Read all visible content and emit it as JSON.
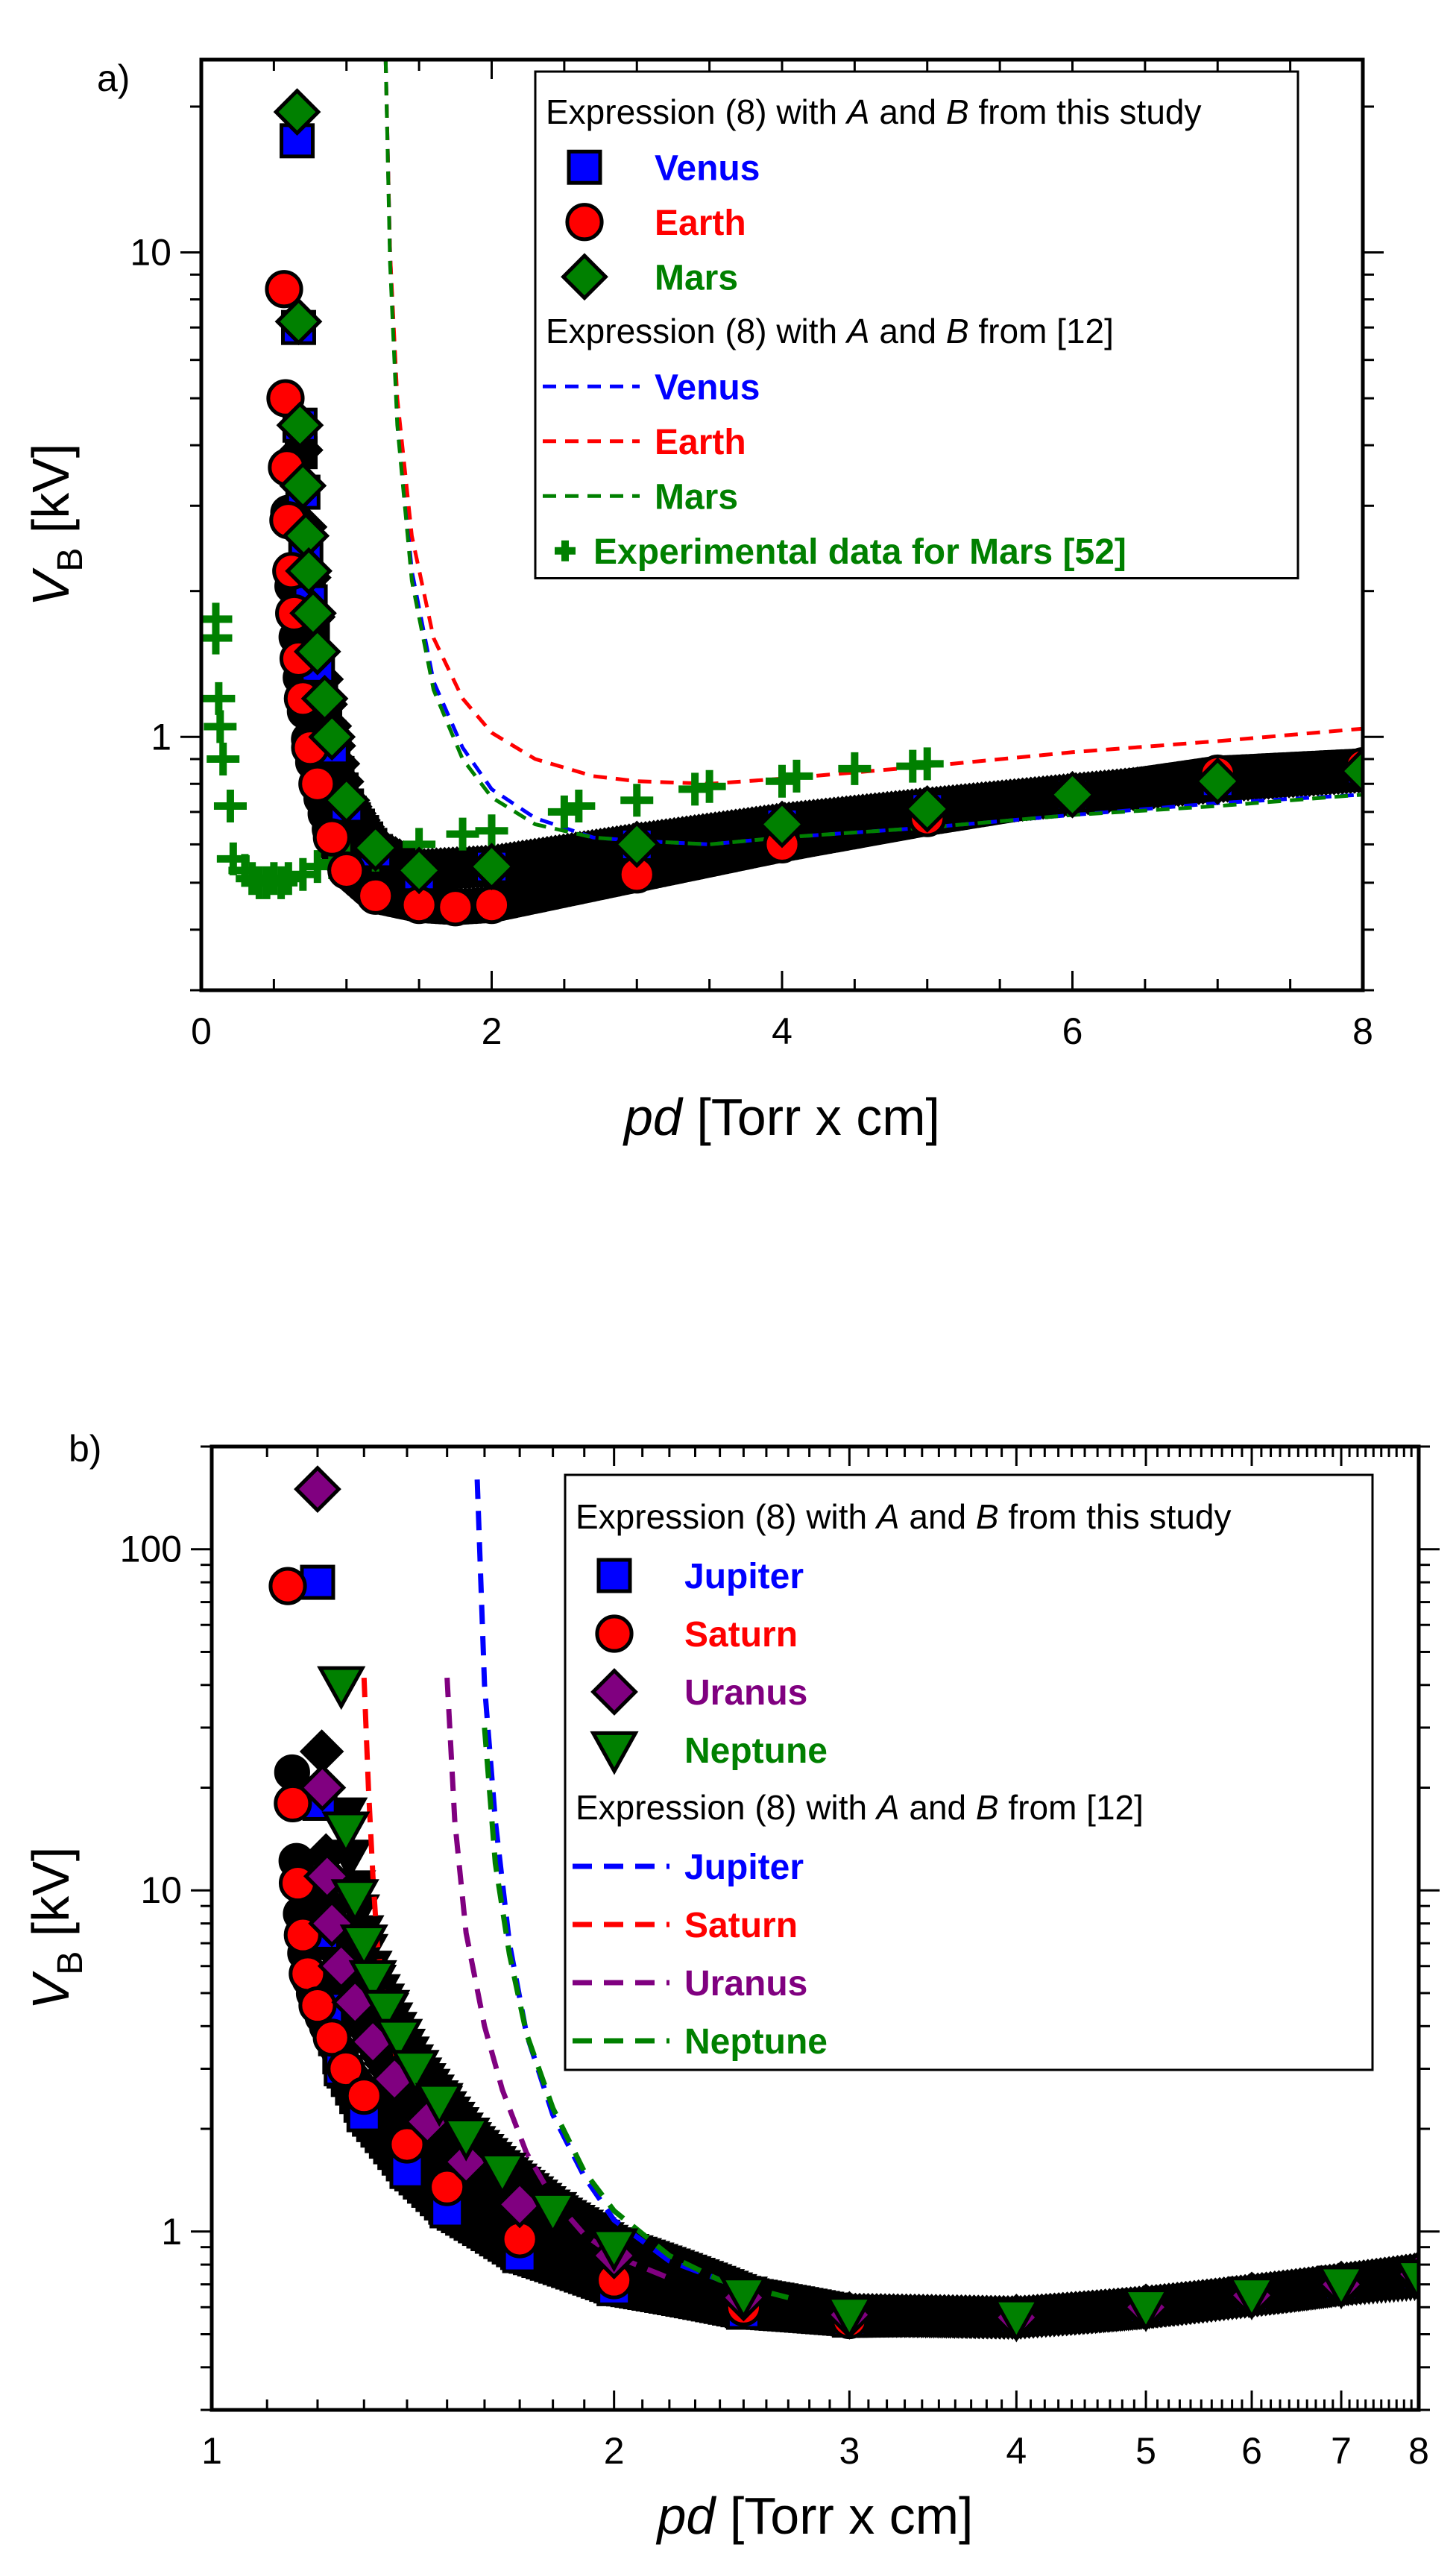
{
  "chart_data": [
    {
      "panel_label": "a)",
      "type": "scatter",
      "xlabel": {
        "italic": "pd",
        "rest": " [Torr x cm]"
      },
      "ylabel": {
        "italic": "V",
        "sub": "B",
        "rest": " [kV]"
      },
      "x_scale": "linear",
      "y_scale": "log",
      "xlim": [
        0,
        8
      ],
      "ylim": [
        0.3,
        25
      ],
      "x_ticks": [
        0,
        2,
        4,
        6,
        8
      ],
      "x_tick_labels": [
        "0",
        "2",
        "4",
        "6",
        "8"
      ],
      "y_ticks": [
        1,
        10
      ],
      "y_tick_labels": [
        "1",
        "10"
      ],
      "grid": false,
      "legend_position": "top-right",
      "legend": {
        "header1": {
          "t1": "Expression (8) with ",
          "a": "A",
          "t2": " and ",
          "b": "B",
          "t3": " from this study"
        },
        "header2": {
          "t1": "Expression (8) with ",
          "a": "A",
          "t2": " and ",
          "b": "B",
          "t3": " from [12]"
        },
        "markers": [
          {
            "label": "Venus",
            "color": "#0000ff",
            "symbol": "square"
          },
          {
            "label": "Earth",
            "color": "#ff0000",
            "symbol": "circle"
          },
          {
            "label": "Mars",
            "color": "#008000",
            "symbol": "diamond"
          }
        ],
        "lines": [
          {
            "label": "Venus",
            "color": "#0000ff"
          },
          {
            "label": "Earth",
            "color": "#ff0000"
          },
          {
            "label": "Mars",
            "color": "#008000"
          }
        ],
        "experimental": {
          "label": "Experimental data for Mars [52]",
          "color": "#008000",
          "symbol": "plus"
        }
      },
      "series": [
        {
          "name": "Venus",
          "kind": "markers",
          "color": "#0000ff",
          "symbol": "square",
          "x": [
            0.66,
            0.67,
            0.68,
            0.7,
            0.72,
            0.75,
            0.8,
            0.9,
            1.0,
            1.2,
            1.5,
            2,
            3,
            4,
            5,
            6,
            7,
            8
          ],
          "y": [
            17,
            7,
            4.4,
            3.2,
            2.4,
            1.9,
            1.4,
            0.95,
            0.72,
            0.58,
            0.52,
            0.54,
            0.6,
            0.66,
            0.71,
            0.76,
            0.81,
            0.86
          ]
        },
        {
          "name": "Earth",
          "kind": "markers",
          "color": "#ff0000",
          "symbol": "circle",
          "x": [
            0.57,
            0.58,
            0.59,
            0.6,
            0.62,
            0.64,
            0.67,
            0.7,
            0.75,
            0.8,
            0.9,
            1.0,
            1.2,
            1.5,
            1.75,
            2,
            3,
            4,
            5,
            6,
            7,
            8
          ],
          "y": [
            8.4,
            5,
            3.6,
            2.8,
            2.2,
            1.8,
            1.45,
            1.2,
            0.95,
            0.8,
            0.62,
            0.53,
            0.47,
            0.45,
            0.445,
            0.45,
            0.52,
            0.6,
            0.68,
            0.76,
            0.84,
            0.87
          ]
        },
        {
          "name": "Mars",
          "kind": "markers",
          "color": "#008000",
          "symbol": "diamond",
          "x": [
            0.66,
            0.67,
            0.68,
            0.7,
            0.72,
            0.74,
            0.77,
            0.8,
            0.85,
            0.9,
            1.0,
            1.2,
            1.5,
            2,
            3,
            4,
            5,
            6,
            7,
            8
          ],
          "y": [
            19.5,
            7.2,
            4.4,
            3.3,
            2.6,
            2.2,
            1.8,
            1.5,
            1.2,
            1.0,
            0.74,
            0.59,
            0.53,
            0.54,
            0.6,
            0.66,
            0.71,
            0.76,
            0.81,
            0.85
          ]
        },
        {
          "name": "Venus",
          "kind": "dashed",
          "color": "#0000ff",
          "x": [
            1.27,
            1.3,
            1.35,
            1.45,
            1.6,
            1.8,
            2.0,
            2.3,
            2.7,
            3.0,
            3.5,
            4,
            5,
            6,
            7,
            8
          ],
          "y": [
            25,
            10,
            4.6,
            2.2,
            1.3,
            0.95,
            0.78,
            0.68,
            0.62,
            0.61,
            0.6,
            0.62,
            0.65,
            0.69,
            0.73,
            0.76
          ]
        },
        {
          "name": "Earth",
          "kind": "dashed",
          "color": "#ff0000",
          "x": [
            1.27,
            1.3,
            1.35,
            1.45,
            1.6,
            1.8,
            2.0,
            2.3,
            2.7,
            3.0,
            3.5,
            4,
            5,
            6,
            7,
            8
          ],
          "y": [
            25,
            10,
            5,
            2.6,
            1.6,
            1.2,
            1.02,
            0.9,
            0.83,
            0.81,
            0.8,
            0.82,
            0.87,
            0.93,
            0.98,
            1.04
          ]
        },
        {
          "name": "Mars",
          "kind": "dashed",
          "color": "#008000",
          "x": [
            1.27,
            1.3,
            1.35,
            1.45,
            1.6,
            1.8,
            2.0,
            2.3,
            2.7,
            3.0,
            3.5,
            4,
            5,
            6,
            7,
            8
          ],
          "y": [
            25,
            9.5,
            4.4,
            2.1,
            1.25,
            0.9,
            0.75,
            0.66,
            0.62,
            0.61,
            0.6,
            0.62,
            0.65,
            0.69,
            0.72,
            0.76
          ]
        },
        {
          "name": "Experimental data for Mars [52]",
          "kind": "plus",
          "color": "#008000",
          "x": [
            0.1,
            0.1,
            0.12,
            0.13,
            0.15,
            0.2,
            0.22,
            0.3,
            0.35,
            0.4,
            0.45,
            0.5,
            0.55,
            0.6,
            0.7,
            0.8,
            0.9,
            1.0,
            1.2,
            1.5,
            1.8,
            2.0,
            2.5,
            2.6,
            3.0,
            3.4,
            3.5,
            4.0,
            4.1,
            4.5,
            4.9,
            5.0
          ],
          "y": [
            1.75,
            1.6,
            1.2,
            1.05,
            0.9,
            0.72,
            0.56,
            0.53,
            0.51,
            0.5,
            0.5,
            0.51,
            0.5,
            0.51,
            0.52,
            0.54,
            0.55,
            0.56,
            0.57,
            0.6,
            0.63,
            0.64,
            0.7,
            0.72,
            0.74,
            0.78,
            0.79,
            0.81,
            0.83,
            0.86,
            0.87,
            0.88
          ]
        }
      ]
    },
    {
      "panel_label": "b)",
      "type": "scatter",
      "xlabel": {
        "italic": "pd",
        "rest": " [Torr x cm]"
      },
      "ylabel": {
        "italic": "V",
        "sub": "B",
        "rest": " [kV]"
      },
      "x_scale": "log",
      "y_scale": "log",
      "xlim": [
        1,
        8
      ],
      "ylim": [
        0.3,
        200
      ],
      "x_ticks": [
        1,
        2,
        3,
        4,
        5,
        6,
        7,
        8
      ],
      "x_tick_labels": [
        "1",
        "2",
        "3",
        "4",
        "5",
        "6",
        "7",
        "8"
      ],
      "y_ticks": [
        1,
        10,
        100
      ],
      "y_tick_labels": [
        "1",
        "10",
        "100"
      ],
      "grid": false,
      "legend_position": "top-right",
      "legend": {
        "header1": {
          "t1": "Expression (8) with ",
          "a": "A",
          "t2": " and ",
          "b": "B",
          "t3": " from this study"
        },
        "header2": {
          "t1": "Expression (8) with ",
          "a": "A",
          "t2": " and ",
          "b": "B",
          "t3": " from [12]"
        },
        "markers": [
          {
            "label": "Jupiter",
            "color": "#0000ff",
            "symbol": "square"
          },
          {
            "label": "Saturn",
            "color": "#ff0000",
            "symbol": "circle"
          },
          {
            "label": "Uranus",
            "color": "#800080",
            "symbol": "diamond"
          },
          {
            "label": "Neptune",
            "color": "#008000",
            "symbol": "triangle-down"
          }
        ],
        "lines": [
          {
            "label": "Jupiter",
            "color": "#0000ff"
          },
          {
            "label": "Saturn",
            "color": "#ff0000"
          },
          {
            "label": "Uranus",
            "color": "#800080"
          },
          {
            "label": "Neptune",
            "color": "#008000"
          }
        ]
      },
      "series": [
        {
          "name": "Jupiter",
          "kind": "markers",
          "color": "#0000ff",
          "symbol": "square",
          "x": [
            1.2,
            1.205,
            1.21,
            1.22,
            1.25,
            1.3,
            1.4,
            1.5,
            1.7,
            2,
            2.5,
            3,
            4,
            5,
            6,
            7,
            8
          ],
          "y": [
            80,
            18,
            7.5,
            4.5,
            3,
            2.2,
            1.5,
            1.15,
            0.85,
            0.68,
            0.58,
            0.55,
            0.56,
            0.6,
            0.65,
            0.7,
            0.75
          ]
        },
        {
          "name": "Saturn",
          "kind": "markers",
          "color": "#ff0000",
          "symbol": "circle",
          "x": [
            1.14,
            1.15,
            1.16,
            1.17,
            1.18,
            1.2,
            1.23,
            1.26,
            1.3,
            1.4,
            1.5,
            1.7,
            2,
            2.5,
            3,
            4,
            5,
            6,
            7,
            8
          ],
          "y": [
            78,
            18,
            10.5,
            7.4,
            5.7,
            4.6,
            3.7,
            3.0,
            2.5,
            1.8,
            1.35,
            0.95,
            0.72,
            0.6,
            0.55,
            0.56,
            0.6,
            0.65,
            0.7,
            0.75
          ]
        },
        {
          "name": "Uranus",
          "kind": "markers",
          "color": "#800080",
          "symbol": "diamond",
          "x": [
            1.2,
            1.21,
            1.22,
            1.23,
            1.25,
            1.28,
            1.32,
            1.37,
            1.45,
            1.55,
            1.7,
            2,
            2.5,
            3,
            4,
            5,
            6,
            7,
            8
          ],
          "y": [
            150,
            20,
            11,
            8,
            6,
            4.7,
            3.6,
            2.8,
            2.1,
            1.6,
            1.2,
            0.85,
            0.64,
            0.57,
            0.56,
            0.6,
            0.65,
            0.7,
            0.75
          ]
        },
        {
          "name": "Neptune",
          "kind": "markers",
          "color": "#008000",
          "symbol": "triangle-down",
          "x": [
            1.25,
            1.26,
            1.28,
            1.3,
            1.32,
            1.35,
            1.38,
            1.42,
            1.48,
            1.55,
            1.65,
            1.8,
            2,
            2.5,
            3,
            4,
            5,
            6,
            7,
            8
          ],
          "y": [
            40,
            15,
            9.5,
            7,
            5.5,
            4.5,
            3.7,
            3.0,
            2.4,
            1.9,
            1.5,
            1.15,
            0.9,
            0.65,
            0.57,
            0.56,
            0.6,
            0.65,
            0.7,
            0.73
          ]
        },
        {
          "name": "Jupiter",
          "kind": "dashed",
          "color": "#0000ff",
          "x": [
            1.58,
            1.6,
            1.63,
            1.67,
            1.72,
            1.8,
            1.9,
            2.0,
            2.2,
            2.5,
            2.6
          ],
          "y": [
            160,
            40,
            16,
            7,
            3.8,
            2.2,
            1.45,
            1.08,
            0.82,
            0.68,
            0.66
          ]
        },
        {
          "name": "Saturn",
          "kind": "dashed",
          "color": "#ff0000",
          "x": [
            1.3,
            1.31,
            1.32,
            1.33,
            1.35,
            1.38
          ],
          "y": [
            42,
            20,
            11,
            7,
            4.5,
            3.0
          ]
        },
        {
          "name": "Uranus",
          "kind": "dashed",
          "color": "#800080",
          "x": [
            1.5,
            1.52,
            1.55,
            1.6,
            1.65,
            1.72,
            1.8,
            1.9,
            2.0,
            2.2
          ],
          "y": [
            42,
            16,
            7.5,
            4.0,
            2.6,
            1.7,
            1.25,
            0.98,
            0.85,
            0.73
          ]
        },
        {
          "name": "Neptune",
          "kind": "dashed",
          "color": "#008000",
          "x": [
            1.6,
            1.63,
            1.67,
            1.72,
            1.8,
            1.9,
            2.0,
            2.2,
            2.4,
            2.7
          ],
          "y": [
            30,
            12,
            6.5,
            3.8,
            2.3,
            1.5,
            1.15,
            0.85,
            0.72,
            0.64
          ]
        }
      ]
    }
  ]
}
